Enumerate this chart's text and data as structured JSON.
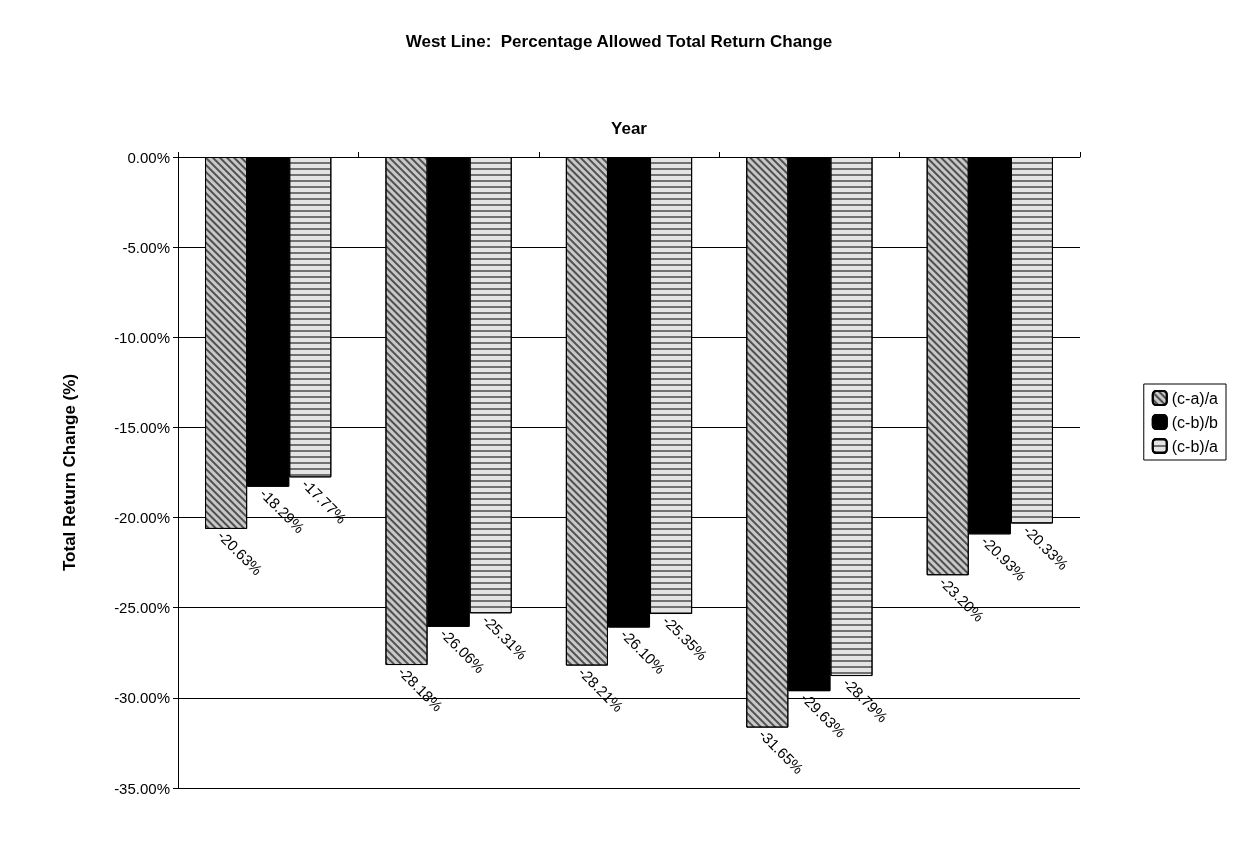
{
  "chart_data": {
    "type": "bar",
    "title": "West Line:  Percentage Allowed Total Return Change",
    "xlabel": "Year",
    "ylabel": "Total Return Change (%)",
    "categories": [
      null,
      null,
      null,
      null,
      null
    ],
    "series": [
      {
        "name": "(c-a)/a",
        "color": "#c8c8c8",
        "values": [
          -20.63,
          -28.18,
          -28.21,
          -31.65,
          -23.2
        ],
        "value_labels": [
          "-20.63%",
          "-28.18%",
          "-28.21%",
          "-31.65%",
          "-23.20%"
        ]
      },
      {
        "name": "(c-b)/b",
        "color": "#000000",
        "values": [
          -18.29,
          -26.06,
          -26.1,
          -29.63,
          -20.93
        ],
        "value_labels": [
          "-18.29%",
          "-26.06%",
          "-26.10%",
          "-29.63%",
          "-20.93%"
        ]
      },
      {
        "name": "(c-b)/a",
        "color": "#e4e4e4",
        "values": [
          -17.77,
          -25.31,
          -25.35,
          -28.79,
          -20.33
        ],
        "value_labels": [
          "-17.77%",
          "-25.31%",
          "-25.35%",
          "-28.79%",
          "-20.33%"
        ]
      }
    ],
    "ylim": [
      -35,
      0
    ],
    "yticks": [
      {
        "value": -35,
        "label": "-35.00%"
      },
      {
        "value": -30,
        "label": "-30.00%"
      },
      {
        "value": -25,
        "label": "-25.00%"
      },
      {
        "value": -20,
        "label": "-20.00%"
      },
      {
        "value": -15,
        "label": "-15.00%"
      },
      {
        "value": -10,
        "label": "-10.00%"
      },
      {
        "value": -5,
        "label": "-5.00%"
      },
      {
        "value": 0,
        "label": "0.00%"
      }
    ],
    "grid": "y",
    "legend": "right"
  }
}
